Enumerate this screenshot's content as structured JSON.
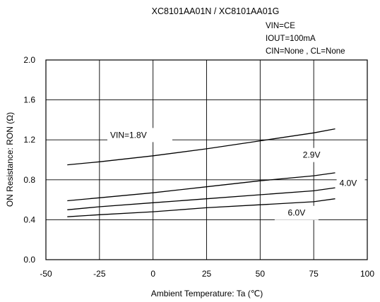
{
  "chart_data": {
    "type": "line",
    "title": "XC8101AA01N / XC8101AA01G",
    "conditions": [
      "VIN=CE",
      "IOUT=100mA",
      "CIN=None , CL=None"
    ],
    "xlabel": "Ambient Temperature: Ta (℃)",
    "ylabel": "ON Resistance: RON (Ω)",
    "xlim": [
      -50,
      100
    ],
    "ylim": [
      0.0,
      2.0
    ],
    "xticks": [
      -50,
      -25,
      0,
      25,
      50,
      75,
      100
    ],
    "xtick_labels": [
      "-50",
      "-25",
      "0",
      "25",
      "50",
      "75",
      "100"
    ],
    "yticks": [
      0.0,
      0.4,
      0.8,
      1.2,
      1.6,
      2.0
    ],
    "ytick_labels": [
      "0.0",
      "0.4",
      "0.8",
      "1.2",
      "1.6",
      "2.0"
    ],
    "grid": true,
    "series": [
      {
        "name": "VIN=1.8V",
        "x": [
          -40,
          -25,
          0,
          25,
          50,
          75,
          85
        ],
        "y": [
          0.95,
          0.98,
          1.04,
          1.11,
          1.19,
          1.27,
          1.31
        ]
      },
      {
        "name": "2.9V",
        "x": [
          -40,
          -25,
          0,
          25,
          50,
          75,
          85
        ],
        "y": [
          0.59,
          0.62,
          0.67,
          0.73,
          0.79,
          0.84,
          0.87
        ]
      },
      {
        "name": "4.0V",
        "x": [
          -40,
          -25,
          0,
          25,
          50,
          75,
          85
        ],
        "y": [
          0.5,
          0.53,
          0.57,
          0.61,
          0.65,
          0.69,
          0.72
        ]
      },
      {
        "name": "6.0V",
        "x": [
          -40,
          -25,
          0,
          25,
          50,
          75,
          85
        ],
        "y": [
          0.43,
          0.45,
          0.48,
          0.52,
          0.55,
          0.58,
          0.61
        ]
      }
    ]
  }
}
